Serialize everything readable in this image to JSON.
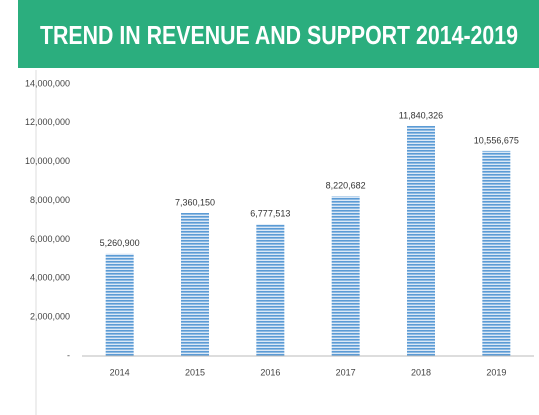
{
  "chart_data": {
    "type": "bar",
    "title": "TREND IN REVENUE AND SUPPORT 2014-2019",
    "categories": [
      "2014",
      "2015",
      "2016",
      "2017",
      "2018",
      "2019"
    ],
    "values": [
      5260900,
      7360150,
      6777513,
      8220682,
      11840326,
      10556675
    ],
    "value_labels": [
      "5,260,900",
      "7,360,150",
      "6,777,513",
      "8,220,682",
      "11,840,326",
      "10,556,675"
    ],
    "color": "#5b9bd5",
    "ylim": [
      0,
      14000000
    ],
    "yticks": [
      {
        "value": 0,
        "label": "-"
      },
      {
        "value": 2000000,
        "label": "2,000,000"
      },
      {
        "value": 4000000,
        "label": "4,000,000"
      },
      {
        "value": 6000000,
        "label": "6,000,000"
      },
      {
        "value": 8000000,
        "label": "8,000,000"
      },
      {
        "value": 10000000,
        "label": "10,000,000"
      },
      {
        "value": 12000000,
        "label": "12,000,000"
      },
      {
        "value": 14000000,
        "label": "14,000,000"
      }
    ],
    "grid": false
  }
}
